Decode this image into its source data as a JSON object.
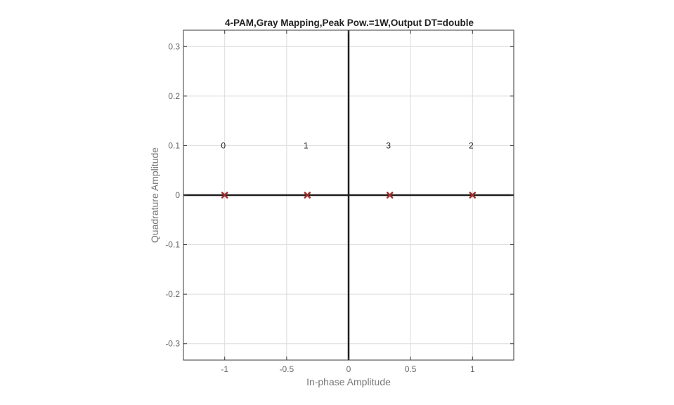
{
  "chart_data": {
    "type": "scatter",
    "title": "4-PAM,Gray Mapping,Peak Pow.=1W,Output DT=double",
    "xlabel": "In-phase Amplitude",
    "ylabel": "Quadrature Amplitude",
    "xlim": [
      -1.333,
      1.333
    ],
    "ylim": [
      -0.333,
      0.333
    ],
    "xticks": [
      -1,
      -0.5,
      0,
      0.5,
      1
    ],
    "xtick_labels": [
      "-1",
      "-0.5",
      "0",
      "0.5",
      "1"
    ],
    "yticks": [
      -0.3,
      -0.2,
      -0.1,
      0,
      0.1,
      0.2,
      0.3
    ],
    "ytick_labels": [
      "-0.3",
      "-0.2",
      "-0.1",
      "0",
      "0.1",
      "0.2",
      "0.3"
    ],
    "grid": true,
    "marker": "x",
    "marker_color": "#a2302d",
    "points": [
      {
        "x": -1,
        "y": 0,
        "label": "0"
      },
      {
        "x": -0.333,
        "y": 0,
        "label": "1"
      },
      {
        "x": 0.333,
        "y": 0,
        "label": "3"
      },
      {
        "x": 1,
        "y": 0,
        "label": "2"
      }
    ],
    "label_y": 0.1
  }
}
